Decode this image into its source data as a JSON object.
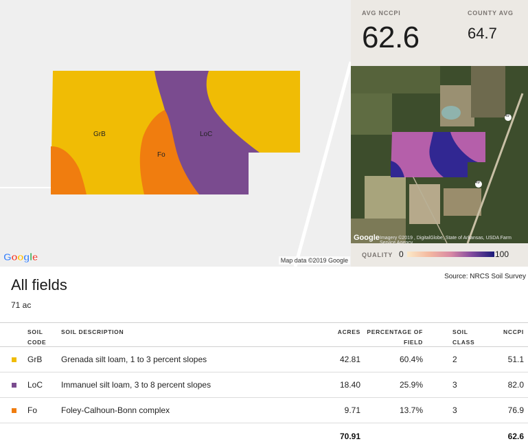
{
  "map": {
    "google_logo": "Google",
    "credit": "Map data ©2019 Google",
    "soil_labels": [
      "GrB",
      "Fo",
      "LoC"
    ]
  },
  "stats": {
    "avg_label": "AVG NCCPI",
    "avg_value": "62.6",
    "county_label": "COUNTY AVG",
    "county_value": "64.7"
  },
  "satellite": {
    "google_logo": "Google",
    "credit": "Imagery ©2019 , DigitalGlobe, State of Arkansas, USDA Farm Service Agency",
    "highway_shield": "49"
  },
  "quality": {
    "label": "QUALITY",
    "min": "0",
    "max": "100"
  },
  "summary": {
    "title": "All fields",
    "acres": "71 ac",
    "source": "Source: NRCS Soil Survey"
  },
  "table": {
    "headers": {
      "soil_code": [
        "SOIL",
        "CODE"
      ],
      "soil_description": "SOIL DESCRIPTION",
      "acres": "ACRES",
      "percentage": [
        "PERCENTAGE OF",
        "FIELD"
      ],
      "soil_class": [
        "SOIL",
        "CLASS"
      ],
      "nccpi": "NCCPI"
    },
    "rows": [
      {
        "code": "GrB",
        "description": "Grenada silt loam, 1 to 3 percent slopes",
        "acres": "42.81",
        "percentage": "60.4%",
        "soil_class": "2",
        "nccpi": "51.1",
        "color": "#f0bc05"
      },
      {
        "code": "LoC",
        "description": "Immanuel silt loam, 3 to 8 percent slopes",
        "acres": "18.40",
        "percentage": "25.9%",
        "soil_class": "3",
        "nccpi": "82.0",
        "color": "#7a4b8f"
      },
      {
        "code": "Fo",
        "description": "Foley-Calhoun-Bonn complex",
        "acres": "9.71",
        "percentage": "13.7%",
        "soil_class": "3",
        "nccpi": "76.9",
        "color": "#f07d0f"
      }
    ],
    "totals": {
      "acres": "70.91",
      "nccpi": "62.6"
    }
  }
}
